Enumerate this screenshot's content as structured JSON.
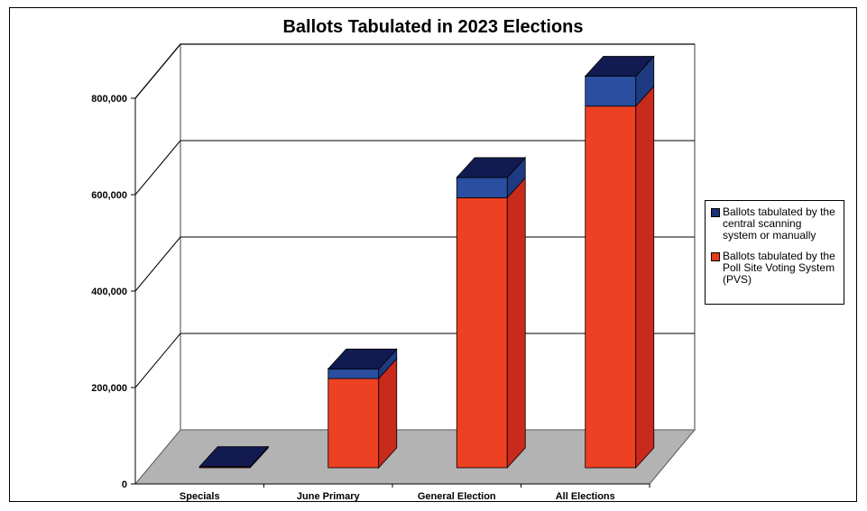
{
  "chart_data": {
    "type": "bar",
    "stacked": true,
    "three_d": true,
    "title": "Ballots Tabulated in 2023 Elections",
    "categories": [
      "Specials",
      "June Primary",
      "General Election",
      "All Elections"
    ],
    "series": [
      {
        "name": "Ballots tabulated by the Poll Site Voting System (PVS)",
        "color": "#ee4022",
        "values": [
          2000,
          185000,
          560000,
          750000
        ]
      },
      {
        "name": "Ballots tabulated by the central scanning system or manually",
        "color": "#2a4fa0",
        "values": [
          500,
          20000,
          42000,
          62000
        ]
      }
    ],
    "yticks": [
      "0",
      "200,000",
      "400,000",
      "600,000",
      "800,000"
    ],
    "ylim": [
      0,
      800000
    ],
    "grid": true,
    "legend": "right"
  }
}
